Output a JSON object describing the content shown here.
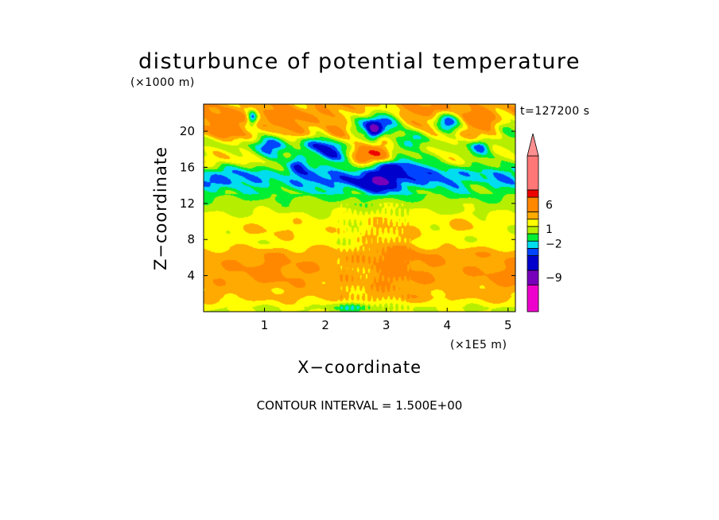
{
  "chart_data": {
    "type": "heatmap",
    "title": "disturbunce of potential temperature",
    "y_unit_label": "(×1000 m)",
    "x_unit_label": "(×1E5 m)",
    "time_label": "t=127200 s",
    "xlabel": "X−coordinate",
    "ylabel": "Z−coordinate",
    "footer": "CONTOUR INTERVAL = 1.500E+00",
    "xlim": [
      0,
      5.12
    ],
    "ylim": [
      0,
      23
    ],
    "x_ticks": [
      1,
      2,
      3,
      4,
      5
    ],
    "x_tick_labels": [
      "1",
      "2",
      "3",
      "4",
      "5"
    ],
    "y_ticks": [
      4,
      8,
      12,
      16,
      20
    ],
    "y_tick_labels": [
      "4",
      "8",
      "12",
      "16",
      "20"
    ],
    "colorbar": {
      "labels": [
        {
          "value": 6,
          "text": "6"
        },
        {
          "value": 1,
          "text": "1"
        },
        {
          "value": -2,
          "text": "−2"
        },
        {
          "value": -9,
          "text": "−9"
        }
      ],
      "bands": [
        {
          "lo": -16,
          "hi": -10.5,
          "color": "#ee00cc"
        },
        {
          "lo": -10.5,
          "hi": -7.5,
          "color": "#7700bb"
        },
        {
          "lo": -7.5,
          "hi": -4.5,
          "color": "#0000cc"
        },
        {
          "lo": -4.5,
          "hi": -3,
          "color": "#0044ff"
        },
        {
          "lo": -3,
          "hi": -1.5,
          "color": "#00ddee"
        },
        {
          "lo": -1.5,
          "hi": 0,
          "color": "#00ee33"
        },
        {
          "lo": 0,
          "hi": 1.5,
          "color": "#b6ee00"
        },
        {
          "lo": 1.5,
          "hi": 3,
          "color": "#ffff00"
        },
        {
          "lo": 3,
          "hi": 4.5,
          "color": "#ffaa00"
        },
        {
          "lo": 4.5,
          "hi": 7.5,
          "color": "#ff8800"
        },
        {
          "lo": 7.5,
          "hi": 9,
          "color": "#ee0000"
        },
        {
          "lo": 9,
          "hi": 16,
          "color": "#ff7777"
        }
      ],
      "extend_color": "#ff9090"
    },
    "layers": [
      {
        "z": [
          0,
          1
        ],
        "value": 1.5
      },
      {
        "z": [
          1,
          3
        ],
        "value": 3.5
      },
      {
        "z": [
          3,
          7
        ],
        "value": 4.0
      },
      {
        "z": [
          7,
          11
        ],
        "value": 2.0
      },
      {
        "z": [
          11,
          12.5
        ],
        "value": 0.8
      },
      {
        "z": [
          12.5,
          14
        ],
        "value": -0.7
      },
      {
        "z": [
          14,
          16
        ],
        "value": -2.0
      },
      {
        "z": [
          16,
          19
        ],
        "value": 1.0
      },
      {
        "z": [
          19,
          23
        ],
        "value": 4.0
      }
    ],
    "features": [
      {
        "x": 3.1,
        "z": 6.5,
        "sx": 0.5,
        "sz": 4.0,
        "amp": 1.8
      },
      {
        "x": 2.6,
        "z": 5,
        "sx": 0.35,
        "sz": 2.5,
        "amp": -0.8
      },
      {
        "x": 1.1,
        "z": 4.5,
        "sx": 0.5,
        "sz": 1.5,
        "amp": 1.2
      },
      {
        "x": 4.9,
        "z": 4,
        "sx": 0.3,
        "sz": 1.5,
        "amp": 1.0
      },
      {
        "x": 2.5,
        "z": 0.5,
        "sx": 0.4,
        "sz": 0.5,
        "amp": -3.0
      },
      {
        "x": 4.3,
        "z": 9.5,
        "sx": 0.3,
        "sz": 1.0,
        "amp": 1.2
      },
      {
        "x": 1.2,
        "z": 9.0,
        "sx": 0.8,
        "sz": 1.0,
        "amp": 1.0
      },
      {
        "x": 0.2,
        "z": 14.5,
        "sx": 0.4,
        "sz": 1.0,
        "amp": -2.0
      },
      {
        "x": 2.2,
        "z": 14.5,
        "sx": 0.8,
        "sz": 1.0,
        "amp": -1.5
      },
      {
        "x": 3.8,
        "z": 15.0,
        "sx": 0.6,
        "sz": 1.0,
        "amp": -1.2
      },
      {
        "x": 2.9,
        "z": 14.3,
        "sx": 0.45,
        "sz": 1.2,
        "amp": -5.0
      },
      {
        "x": 3.15,
        "z": 16.2,
        "sx": 0.35,
        "sz": 0.8,
        "amp": -6.0
      },
      {
        "x": 2.55,
        "z": 17.2,
        "sx": 0.18,
        "sz": 1.5,
        "amp": 4.5
      },
      {
        "x": 2.85,
        "z": 17.5,
        "sx": 0.25,
        "sz": 1.2,
        "amp": 5.0
      },
      {
        "x": 2.1,
        "z": 17.5,
        "sx": 0.22,
        "sz": 1.5,
        "amp": -6.0
      },
      {
        "x": 1.8,
        "z": 18.8,
        "sx": 0.25,
        "sz": 1.2,
        "amp": -5.0
      },
      {
        "x": 1.05,
        "z": 18.5,
        "sx": 0.25,
        "sz": 1.2,
        "amp": -5.5
      },
      {
        "x": 1.55,
        "z": 16.5,
        "sx": 0.15,
        "sz": 1.0,
        "amp": -4.0
      },
      {
        "x": 0.3,
        "z": 17.0,
        "sx": 0.3,
        "sz": 1.0,
        "amp": 2.5
      },
      {
        "x": 2.55,
        "z": 20.5,
        "sx": 0.3,
        "sz": 1.2,
        "amp": -7.0
      },
      {
        "x": 3.05,
        "z": 21.0,
        "sx": 0.25,
        "sz": 1.5,
        "amp": -6.5
      },
      {
        "x": 2.8,
        "z": 20.0,
        "sx": 0.12,
        "sz": 1.0,
        "amp": -8.0
      },
      {
        "x": 4.0,
        "z": 21.0,
        "sx": 0.22,
        "sz": 1.3,
        "amp": -7.0
      },
      {
        "x": 3.5,
        "z": 19.3,
        "sx": 0.25,
        "sz": 1.0,
        "amp": -5.0
      },
      {
        "x": 0.8,
        "z": 21.5,
        "sx": 0.08,
        "sz": 0.8,
        "amp": -7.0
      },
      {
        "x": 4.55,
        "z": 18.3,
        "sx": 0.15,
        "sz": 0.8,
        "amp": -4.0
      },
      {
        "x": 5.0,
        "z": 20.0,
        "sx": 0.2,
        "sz": 1.2,
        "amp": -5.0
      },
      {
        "x": 2.2,
        "z": 20.0,
        "sx": 0.25,
        "sz": 1.0,
        "amp": 4.0
      },
      {
        "x": 0.4,
        "z": 21.0,
        "sx": 0.4,
        "sz": 1.2,
        "amp": 2.0
      },
      {
        "x": 3.7,
        "z": 22.3,
        "sx": 0.4,
        "sz": 0.8,
        "amp": 2.5
      },
      {
        "x": 4.6,
        "z": 21.5,
        "sx": 0.3,
        "sz": 1.0,
        "amp": 2.0
      },
      {
        "x": 1.5,
        "z": 21.5,
        "sx": 0.3,
        "sz": 1.0,
        "amp": 2.0
      }
    ]
  }
}
